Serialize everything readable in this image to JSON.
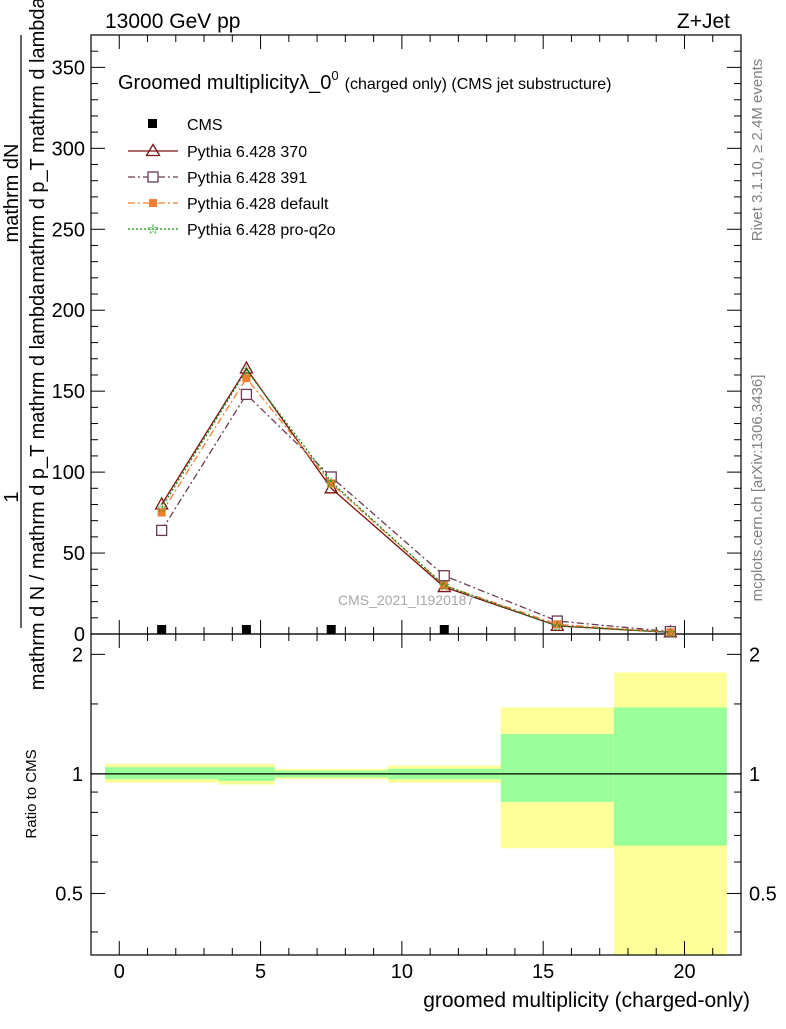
{
  "header": {
    "left": "13000 GeV pp",
    "right": "Z+Jet"
  },
  "side": {
    "rivet": "Rivet 3.1.10, ≥ 2.4M events",
    "mcplots": "mcplots.cern.ch [arXiv:1306.3436]"
  },
  "watermark": "CMS_2021_I1920187",
  "chart_data": [
    {
      "type": "line",
      "title_main": "Groomed multiplicityλ_0",
      "title_sup": "0",
      "title_small": "(charged only) (CMS jet substructure)",
      "ylabel_numer": "mathrm dN",
      "ylabel_denom1": "mathrm d p_T mathrm d lambda",
      "ylabel_main": "mathrm d N / mathrm d p_T mathrm d lambda",
      "ylabel_one": "1",
      "xlim": [
        -1,
        22
      ],
      "ylim": [
        0,
        370
      ],
      "yticks": [
        50,
        100,
        150,
        200,
        250,
        300,
        350
      ],
      "x": [
        1.5,
        4.5,
        7.5,
        11.5,
        15.5,
        19.5
      ],
      "cms_values": [
        0,
        0,
        0,
        0,
        0,
        0
      ],
      "series": [
        {
          "name": "CMS",
          "values": [
            0,
            0,
            0,
            0,
            0,
            0
          ],
          "color": "#000000"
        },
        {
          "name": "Pythia 6.428 370",
          "values": [
            80,
            164,
            90,
            29,
            5,
            1
          ],
          "color": "#7f1010"
        },
        {
          "name": "Pythia 6.428 391",
          "values": [
            64,
            148,
            97,
            36,
            8,
            1.5
          ],
          "color": "#6b3a56"
        },
        {
          "name": "Pythia 6.428 default",
          "values": [
            75,
            158,
            93,
            30,
            6,
            1
          ],
          "color": "#f08030"
        },
        {
          "name": "Pythia 6.428 pro-q2o",
          "values": [
            78,
            163,
            94,
            30,
            5,
            1
          ],
          "color": "#109010"
        }
      ]
    },
    {
      "type": "area",
      "ylabel": "Ratio to CMS",
      "xlabel": "groomed multiplicity (charged-only)",
      "xlim": [
        -1,
        22
      ],
      "ylim": [
        0.35,
        2.25
      ],
      "yticks": [
        "0.5",
        "1",
        "2"
      ],
      "xticks": [
        "0",
        "5",
        "10",
        "15",
        "20"
      ],
      "bins": [
        {
          "lo": -0.5,
          "hi": 3.5,
          "band_stat": [
            0.97,
            1.04
          ],
          "band_tot": [
            0.95,
            1.06
          ]
        },
        {
          "lo": 3.5,
          "hi": 5.5,
          "band_stat": [
            0.96,
            1.04
          ],
          "band_tot": [
            0.94,
            1.06
          ]
        },
        {
          "lo": 5.5,
          "hi": 9.5,
          "band_stat": [
            0.98,
            1.02
          ],
          "band_tot": [
            0.97,
            1.03
          ]
        },
        {
          "lo": 9.5,
          "hi": 13.5,
          "band_stat": [
            0.97,
            1.03
          ],
          "band_tot": [
            0.95,
            1.05
          ]
        },
        {
          "lo": 13.5,
          "hi": 17.5,
          "band_stat": [
            0.85,
            1.26
          ],
          "band_tot": [
            0.65,
            1.47
          ]
        },
        {
          "lo": 17.5,
          "hi": 21.5,
          "band_stat": [
            0.66,
            1.47
          ],
          "band_tot": [
            0.35,
            1.8
          ]
        }
      ],
      "colors": {
        "stat": "#99ff99",
        "tot": "#ffff99"
      }
    }
  ]
}
